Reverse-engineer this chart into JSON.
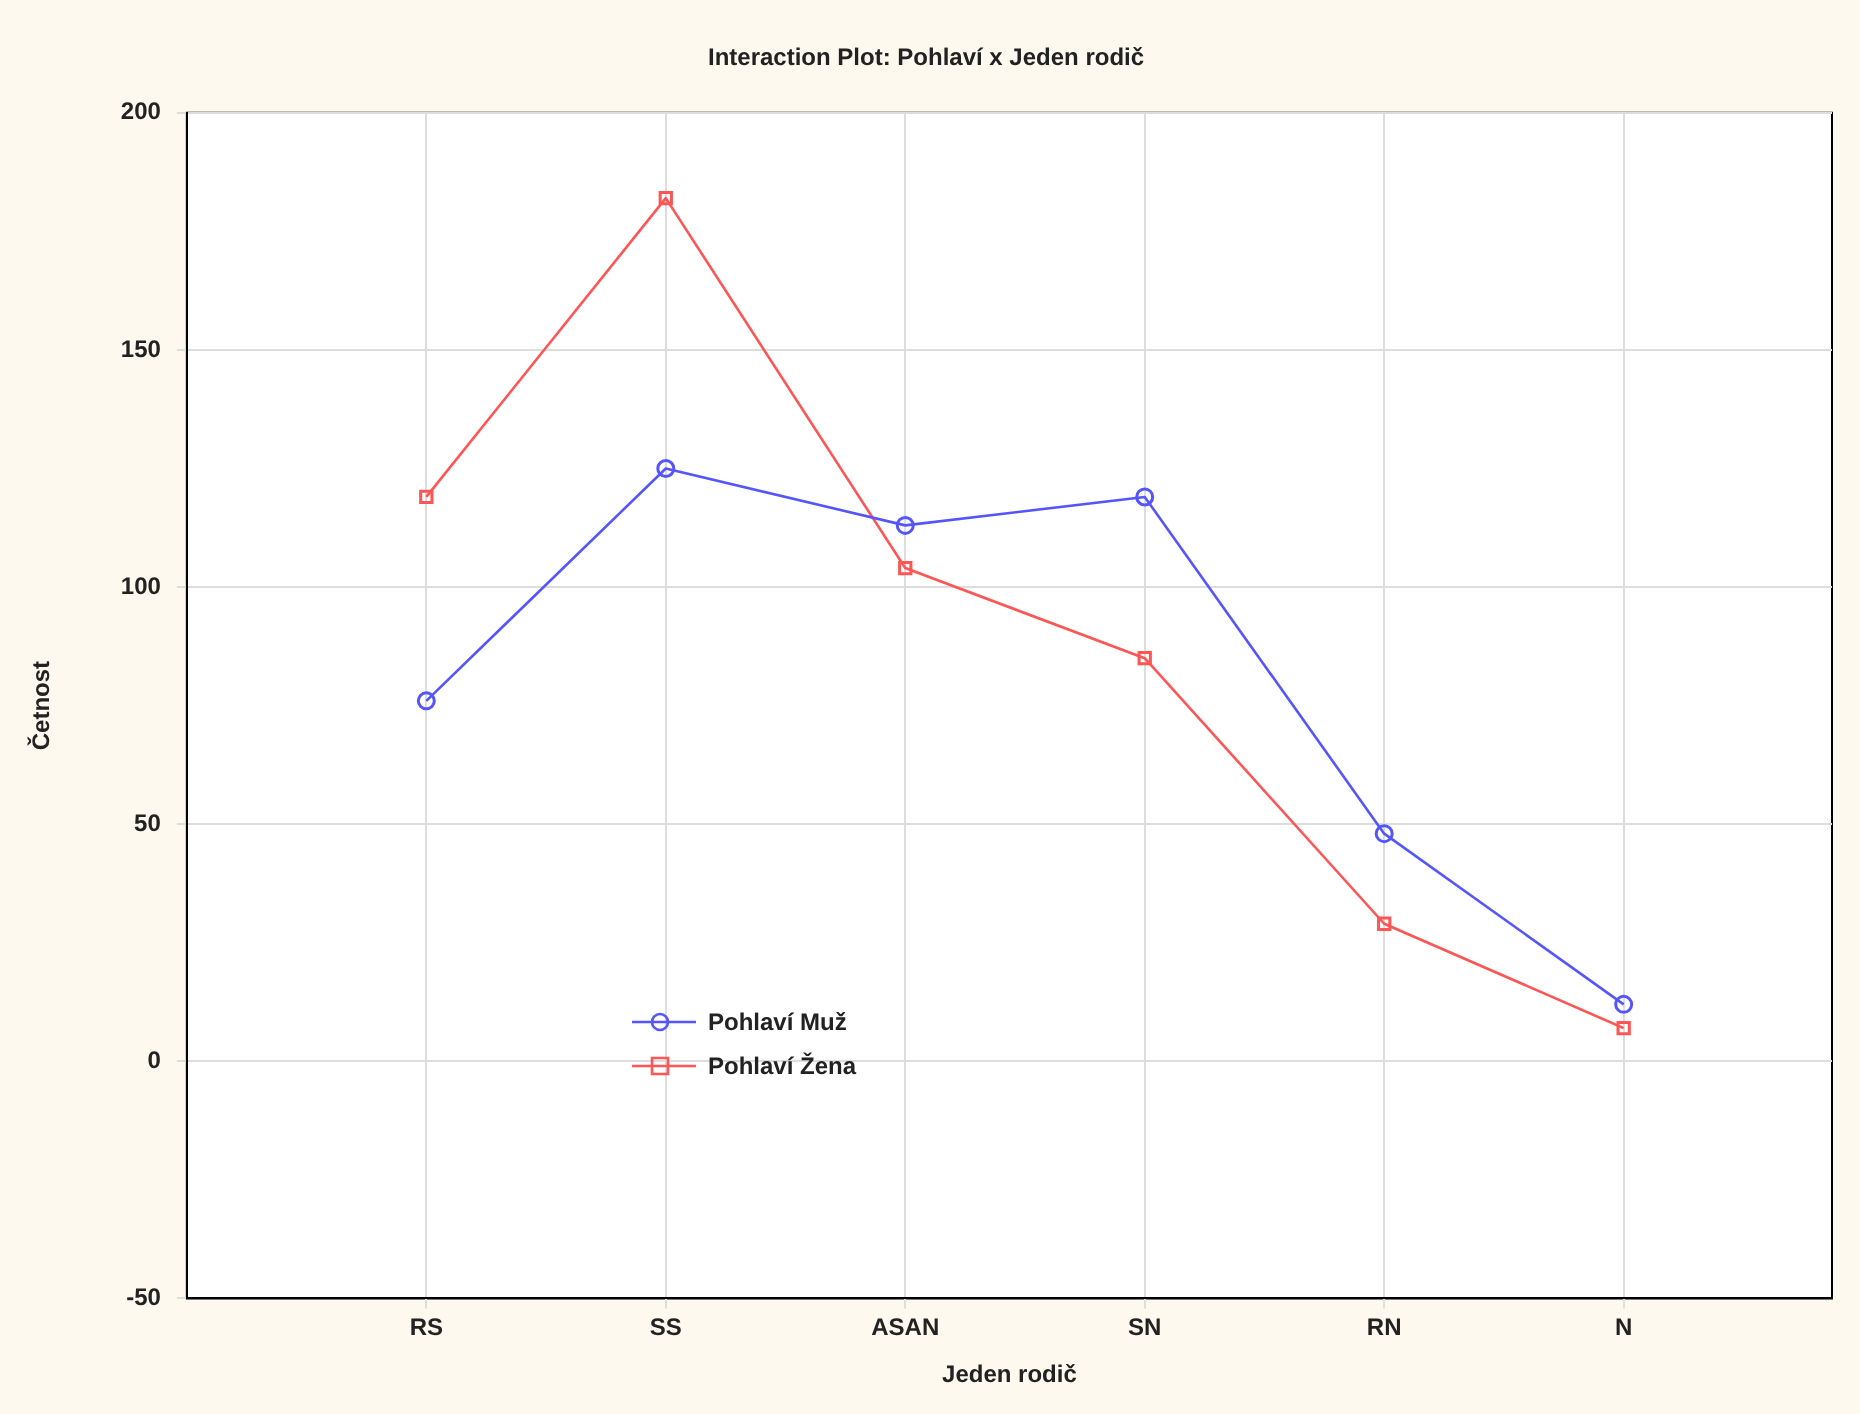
{
  "chart_data": {
    "type": "line",
    "title": "Interaction Plot: Pohlaví x Jeden rodič",
    "xlabel": "Jeden rodič",
    "ylabel": "Četnost",
    "categories": [
      "RS",
      "SS",
      "ASAN",
      "SN",
      "RN",
      "N"
    ],
    "series": [
      {
        "name": "Pohlaví Muž",
        "color": "#5555ff",
        "marker": "circle",
        "values": [
          76,
          125,
          113,
          119,
          48,
          12
        ]
      },
      {
        "name": "Pohlaví Žena",
        "color": "#ff5555",
        "marker": "square",
        "values": [
          119,
          182,
          104,
          85,
          29,
          7
        ]
      }
    ],
    "ylim": [
      -50,
      200
    ],
    "yticks": [
      -50,
      0,
      50,
      100,
      150,
      200
    ],
    "grid": true,
    "legend": "bottom left",
    "line_style": "solid"
  }
}
